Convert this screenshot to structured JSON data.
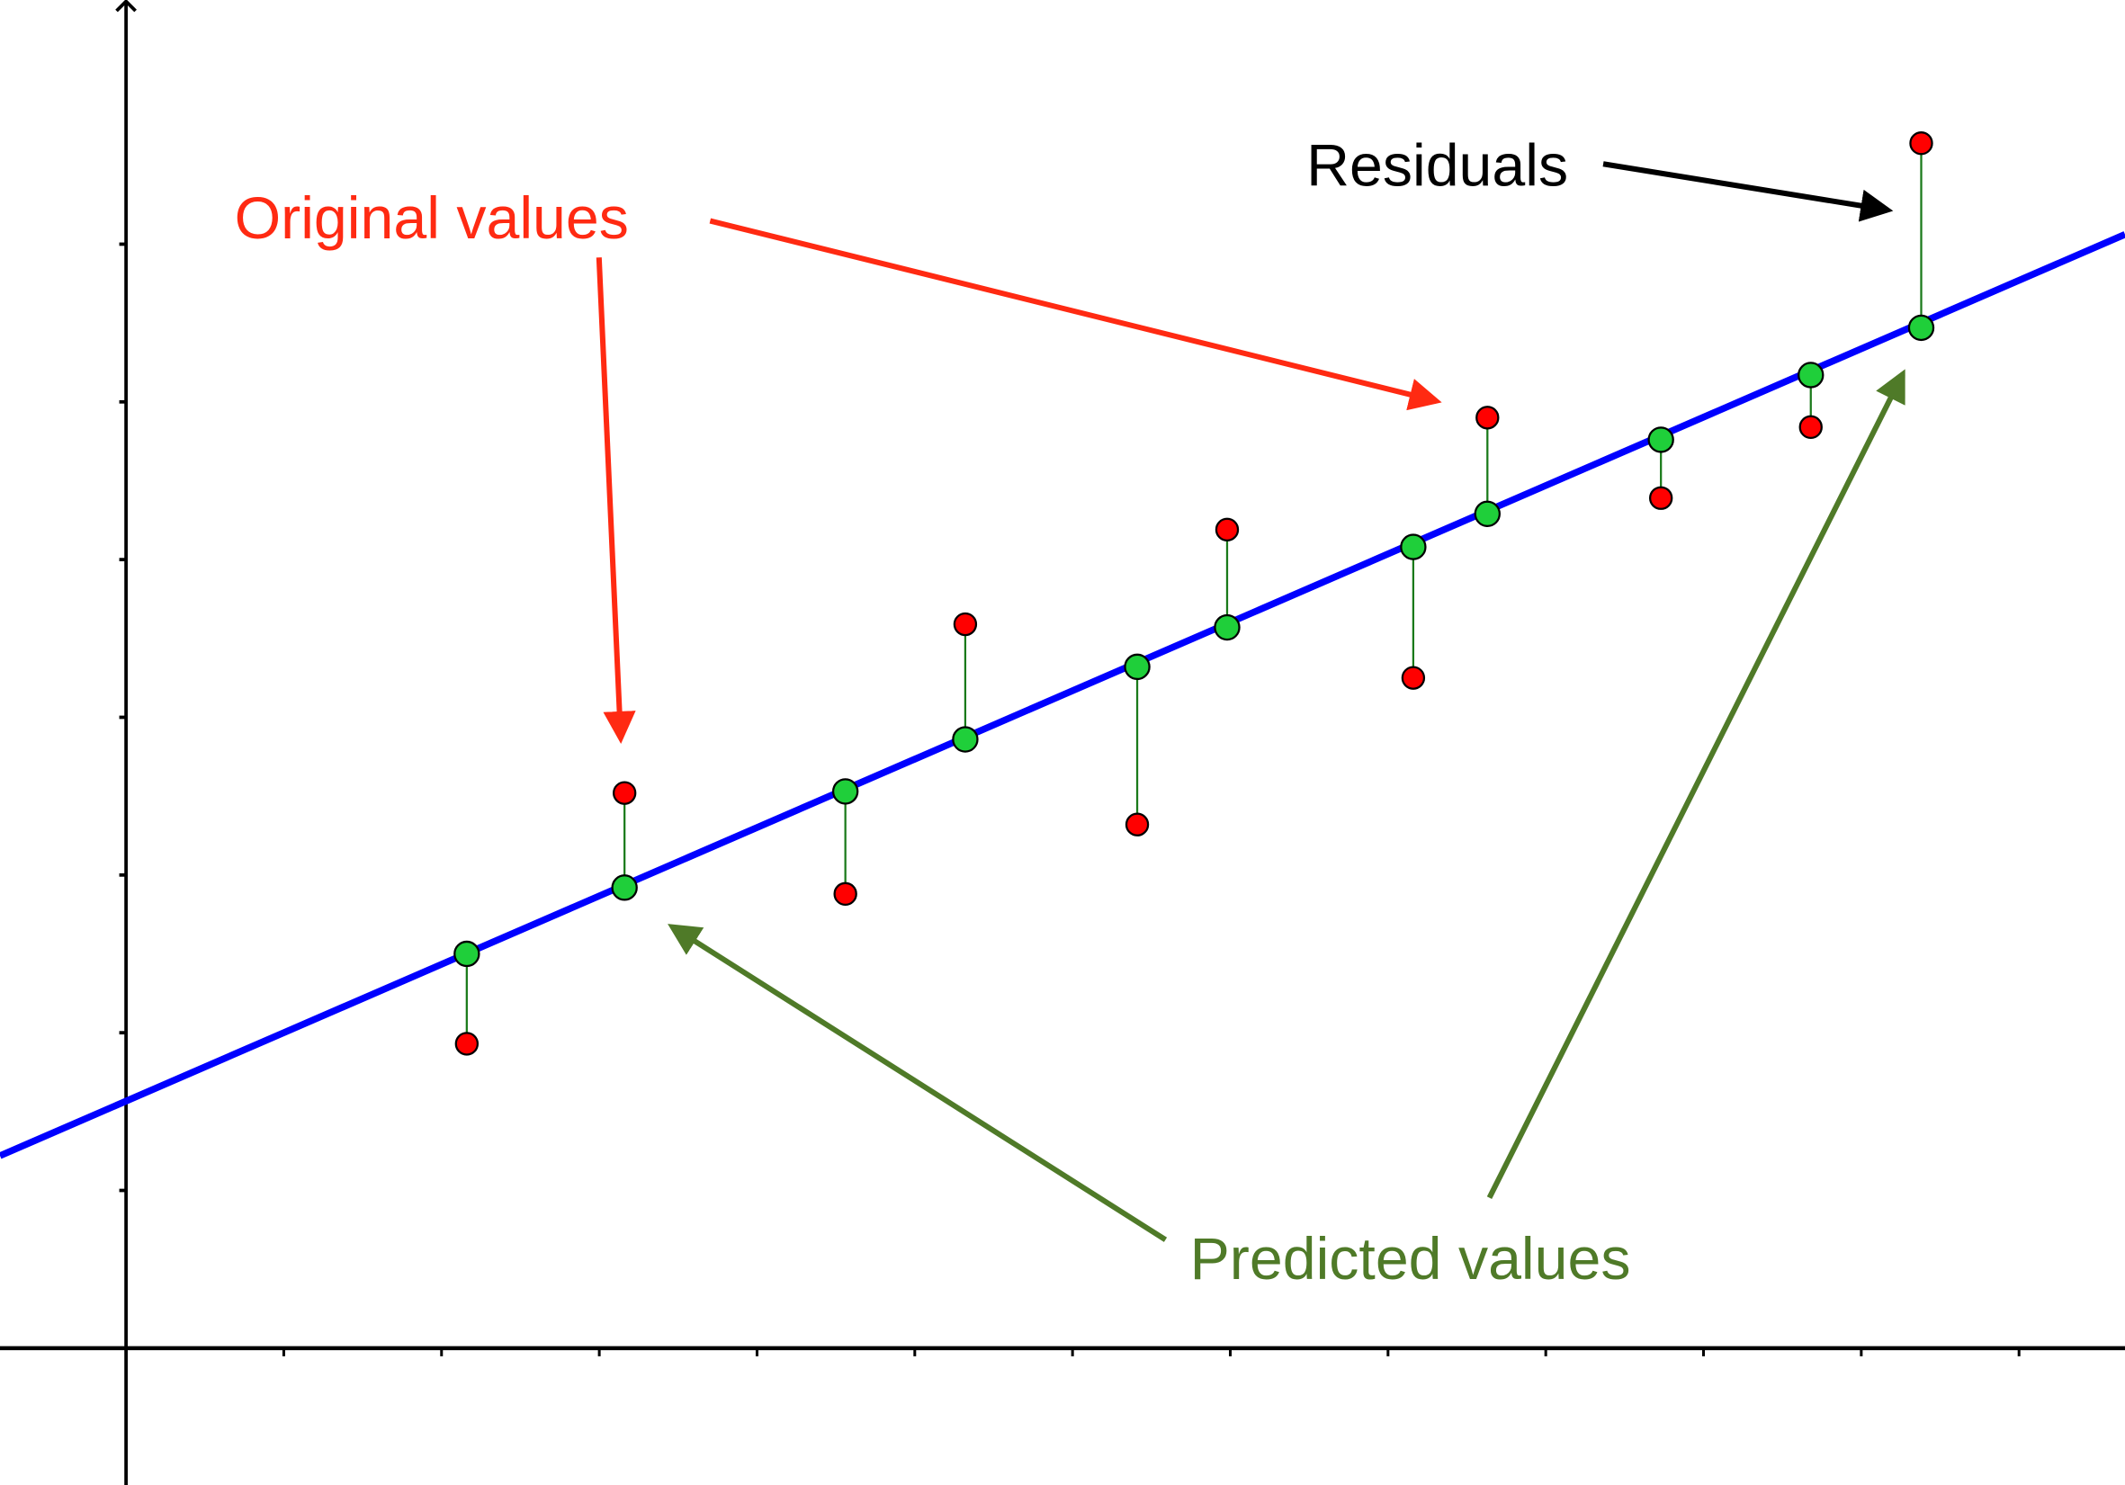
{
  "colors": {
    "original": "#ff2a12",
    "predicted_fill": "#1fcf3a",
    "predicted_label": "#4f7a28",
    "regression_line": "#0000ff",
    "residual": "#1a7a1a",
    "axis": "#000000"
  },
  "labels": {
    "original": "Original values",
    "predicted": "Predicted values",
    "residuals": "Residuals"
  },
  "chart_data": {
    "type": "scatter",
    "title": "",
    "xlabel": "",
    "ylabel": "",
    "grid": false,
    "x_ticks_count": 12,
    "y_ticks_count": 7,
    "series": [
      {
        "name": "Original values",
        "points": [
          [
            2.16,
            1.93
          ],
          [
            3.16,
            3.52
          ],
          [
            4.56,
            2.88
          ],
          [
            5.32,
            4.59
          ],
          [
            6.41,
            3.32
          ],
          [
            6.98,
            5.19
          ],
          [
            8.16,
            4.25
          ],
          [
            8.63,
            5.9
          ],
          [
            9.73,
            5.39
          ],
          [
            10.68,
            5.84
          ],
          [
            11.38,
            7.64
          ]
        ]
      },
      {
        "name": "Predicted values",
        "points": [
          [
            2.16,
            2.5
          ],
          [
            3.16,
            2.92
          ],
          [
            4.56,
            3.53
          ],
          [
            5.32,
            3.86
          ],
          [
            6.41,
            4.32
          ],
          [
            6.98,
            4.57
          ],
          [
            8.16,
            5.08
          ],
          [
            8.63,
            5.29
          ],
          [
            9.73,
            5.76
          ],
          [
            10.68,
            6.17
          ],
          [
            11.38,
            6.47
          ]
        ]
      },
      {
        "name": "Regression line",
        "intercept": 1.55,
        "slope": 0.43
      }
    ],
    "annotations": [
      "Original values",
      "Predicted values",
      "Residuals"
    ]
  }
}
